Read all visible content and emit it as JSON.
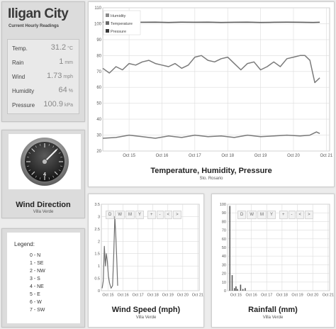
{
  "station": {
    "city": "Iligan City",
    "subtitle": "Current Hourly Readings"
  },
  "readings": [
    {
      "label": "Temp.",
      "value": "31.2",
      "unit": "°C"
    },
    {
      "label": "Rain",
      "value": "1",
      "unit": "mm"
    },
    {
      "label": "Wind",
      "value": "1.73",
      "unit": "mph"
    },
    {
      "label": "Humidity",
      "value": "64",
      "unit": "%"
    },
    {
      "label": "Pressure",
      "value": "100.9",
      "unit": "kPa"
    }
  ],
  "wind_direction": {
    "title": "Wind Direction",
    "location": "Villa Verde",
    "gauge_value_label": "4",
    "gauge_value": 4,
    "gauge_max": 8
  },
  "legend": {
    "title": "Legend:",
    "items": [
      "0 - N",
      "1 - SE",
      "2 - NW",
      "3 - S",
      "4 - NE",
      "5 - E",
      "6 - W",
      "7 - SW"
    ]
  },
  "range_buttons": [
    "D",
    "W",
    "M",
    "Y"
  ],
  "nav_buttons": [
    "+",
    "-",
    "<",
    ">"
  ],
  "colors": {
    "series_line": "#707070",
    "pressure_line": "#555555",
    "grid": "#dcdcdc",
    "panel_bg": "#dcdcdc"
  },
  "chart_data": [
    {
      "type": "line",
      "title": "Temperature, Humidity, Pressure",
      "subtitle": "Sto. Rosario",
      "xlabel": "",
      "ylabel": "",
      "ylim": [
        20,
        110
      ],
      "yticks": [
        20,
        30,
        40,
        50,
        60,
        70,
        80,
        90,
        100,
        110
      ],
      "xlim": [
        14.2,
        21.1
      ],
      "xtick_values": [
        15,
        16,
        17,
        18,
        19,
        20,
        21
      ],
      "xtick_labels": [
        "Oct 15",
        "Oct 16",
        "Oct 17",
        "Oct 18",
        "Oct 19",
        "Oct 20",
        "Oct 21"
      ],
      "legend_position": "top-left",
      "grid": true,
      "series": [
        {
          "name": "Humidity",
          "x": [
            14.2,
            14.4,
            14.6,
            14.8,
            15.0,
            15.2,
            15.4,
            15.6,
            15.8,
            16.0,
            16.2,
            16.4,
            16.6,
            16.8,
            17.0,
            17.2,
            17.4,
            17.6,
            17.8,
            18.0,
            18.2,
            18.4,
            18.6,
            18.8,
            19.0,
            19.2,
            19.4,
            19.6,
            19.8,
            20.0,
            20.2,
            20.35,
            20.5,
            20.65,
            20.8
          ],
          "values": [
            72,
            69,
            73,
            71,
            75,
            74,
            76,
            77,
            75,
            74,
            73,
            75,
            72,
            74,
            79,
            80,
            77,
            76,
            78,
            79,
            75,
            71,
            75,
            76,
            71,
            73,
            76,
            73,
            78,
            79,
            80,
            80,
            77,
            63,
            66
          ]
        },
        {
          "name": "Temperature",
          "x": [
            14.2,
            14.6,
            15.0,
            15.4,
            15.8,
            16.2,
            16.6,
            17.0,
            17.4,
            17.8,
            18.2,
            18.6,
            19.0,
            19.4,
            19.8,
            20.2,
            20.5,
            20.7,
            20.8
          ],
          "values": [
            28,
            28.5,
            30,
            29,
            28,
            29.5,
            28.5,
            30,
            29,
            29.5,
            28.5,
            30,
            29,
            29.5,
            30,
            29.5,
            30,
            32,
            31
          ]
        },
        {
          "name": "Pressure",
          "x": [
            14.2,
            14.6,
            15.0,
            15.4,
            15.8,
            16.2,
            16.6,
            17.0,
            17.4,
            17.8,
            18.2,
            18.6,
            19.0,
            19.4,
            19.8,
            20.2,
            20.6,
            20.8
          ],
          "values": [
            101,
            100.8,
            101,
            100.9,
            101,
            100.8,
            101,
            100.9,
            101,
            100.8,
            100.9,
            101,
            100.8,
            100.9,
            101,
            100.9,
            100.8,
            100.9
          ]
        }
      ]
    },
    {
      "type": "line",
      "title": "Wind Speed (mph)",
      "subtitle": "Villa Verde",
      "xlabel": "",
      "ylabel": "",
      "ylim": [
        0,
        3.5
      ],
      "yticks": [
        0,
        0.5,
        1,
        1.5,
        2,
        2.5,
        3,
        3.5
      ],
      "xlim": [
        14.55,
        21.1
      ],
      "xtick_values": [
        15,
        16,
        17,
        18,
        19,
        20,
        21
      ],
      "xtick_labels": [
        "Oct 15",
        "Oct 16",
        "Oct 17",
        "Oct 18",
        "Oct 19",
        "Oct 20",
        "Oct 21"
      ],
      "grid": true,
      "series": [
        {
          "name": "",
          "x": [
            14.6,
            14.68,
            14.75,
            14.82,
            14.88,
            14.95,
            15.02,
            15.1,
            15.2,
            15.3,
            15.38,
            15.45,
            15.52,
            15.58,
            15.64
          ],
          "values": [
            0.1,
            0.4,
            1.8,
            1.0,
            1.5,
            1.2,
            0.6,
            0.3,
            0.1,
            0.2,
            1.5,
            3.0,
            2.2,
            1.3,
            0.2
          ]
        }
      ]
    },
    {
      "type": "bar",
      "title": "Rainfall (mm)",
      "subtitle": "Villa Verde",
      "xlabel": "",
      "ylabel": "",
      "ylim": [
        0,
        100
      ],
      "yticks": [
        0,
        10,
        20,
        30,
        40,
        50,
        60,
        70,
        80,
        90,
        100
      ],
      "xlim": [
        14.45,
        21.1
      ],
      "xtick_values": [
        15,
        16,
        17,
        18,
        19,
        20,
        21
      ],
      "xtick_labels": [
        "Oct 15",
        "Oct 16",
        "Oct 17",
        "Oct 18",
        "Oct 19",
        "Oct 20",
        "Oct 21"
      ],
      "grid": true,
      "series": [
        {
          "name": "",
          "x": [
            14.6,
            14.75,
            14.9,
            15.0,
            15.1,
            15.3,
            15.45,
            15.6
          ],
          "values": [
            98,
            18,
            3,
            5,
            2,
            7,
            2,
            3
          ]
        }
      ]
    }
  ]
}
